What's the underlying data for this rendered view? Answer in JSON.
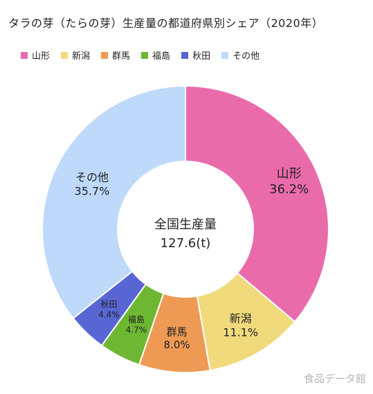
{
  "title": "タラの芽（たらの芽）生産量の都道府県別シェア（2020年）",
  "watermark": "食品データ館",
  "chart_data": {
    "type": "pie",
    "variant": "donut",
    "center_label": "全国生産量",
    "center_value": "127.6(t)",
    "legend_position": "top",
    "slices": [
      {
        "label": "山形",
        "percent": 36.2,
        "display": "36.2%",
        "color": "#EA6BAA"
      },
      {
        "label": "新潟",
        "percent": 11.1,
        "display": "11.1%",
        "color": "#F0DA7C"
      },
      {
        "label": "群馬",
        "percent": 8.0,
        "display": "8.0%",
        "color": "#EE9A55"
      },
      {
        "label": "福島",
        "percent": 4.7,
        "display": "4.7%",
        "color": "#6DB733"
      },
      {
        "label": "秋田",
        "percent": 4.4,
        "display": "4.4%",
        "color": "#5866D4"
      },
      {
        "label": "その他",
        "percent": 35.7,
        "display": "35.7%",
        "color": "#BED9FA"
      }
    ]
  }
}
